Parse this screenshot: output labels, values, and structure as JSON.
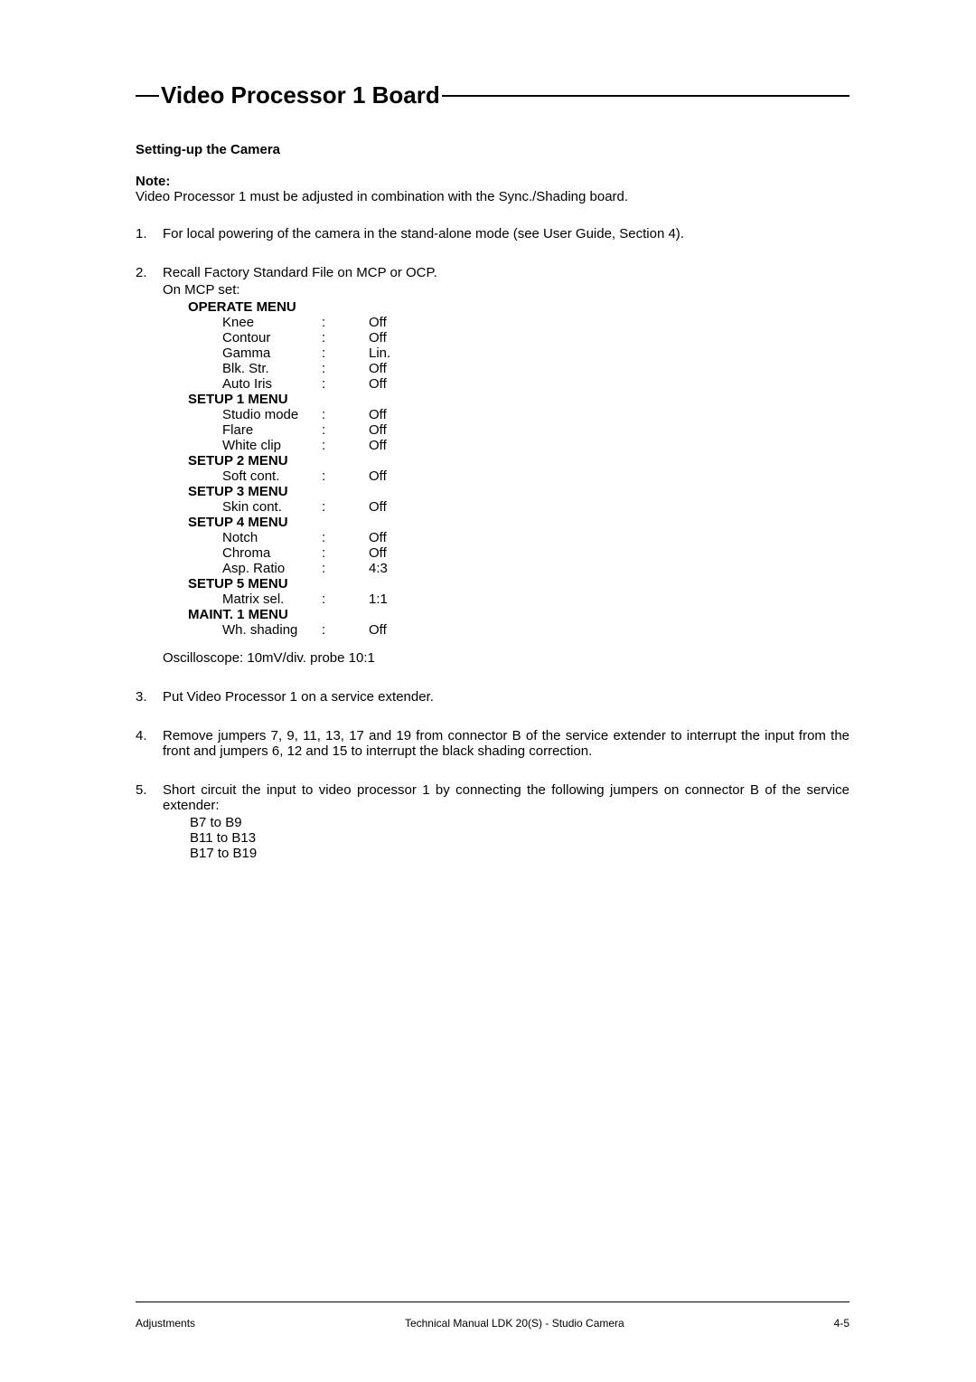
{
  "title": "Video Processor 1 Board",
  "subheading": "Setting-up the Camera",
  "note_label": "Note:",
  "note_text": "Video Processor 1 must be adjusted in combination with the Sync./Shading board.",
  "steps": {
    "s1": {
      "num": "1.",
      "text": "For local powering of the camera in the stand-alone mode (see User Guide, Section 4)."
    },
    "s2": {
      "num": "2.",
      "intro": "Recall Factory Standard File on MCP or OCP.",
      "subintro": "On MCP set:"
    },
    "s3": {
      "num": "3.",
      "text": "Put Video Processor 1 on a service extender."
    },
    "s4": {
      "num": "4.",
      "text": "Remove jumpers 7, 9, 11, 13, 17 and 19 from connector B of the service extender to interrupt the input from the front and jumpers 6, 12 and 15 to interrupt the black shading correction."
    },
    "s5": {
      "num": "5.",
      "text": "Short circuit the input to video processor 1 by connecting the following jumpers on connector B of the service extender:",
      "j1": "B7 to B9",
      "j2": "B11 to B13",
      "j3": "B17 to B19"
    }
  },
  "menus": {
    "m0": {
      "header": "OPERATE MENU"
    },
    "m0r0": {
      "label": "Knee",
      "colon": ":",
      "val": "Off"
    },
    "m0r1": {
      "label": "Contour",
      "colon": ":",
      "val": "Off"
    },
    "m0r2": {
      "label": "Gamma",
      "colon": ":",
      "val": "Lin."
    },
    "m0r3": {
      "label": "Blk. Str.",
      "colon": ":",
      "val": "Off"
    },
    "m0r4": {
      "label": "Auto Iris",
      "colon": ":",
      "val": "Off"
    },
    "m1": {
      "header": "SETUP 1 MENU"
    },
    "m1r0": {
      "label": "Studio mode",
      "colon": ":",
      "val": "Off"
    },
    "m1r1": {
      "label": "Flare",
      "colon": ":",
      "val": "Off"
    },
    "m1r2": {
      "label": "White clip",
      "colon": ":",
      "val": "Off"
    },
    "m2": {
      "header": "SETUP 2 MENU"
    },
    "m2r0": {
      "label": "Soft cont.",
      "colon": ":",
      "val": "Off"
    },
    "m3": {
      "header": "SETUP 3 MENU"
    },
    "m3r0": {
      "label": "Skin cont.",
      "colon": ":",
      "val": "Off"
    },
    "m4": {
      "header": "SETUP 4 MENU"
    },
    "m4r0": {
      "label": "Notch",
      "colon": ":",
      "val": "Off"
    },
    "m4r1": {
      "label": "Chroma",
      "colon": ":",
      "val": "Off"
    },
    "m4r2": {
      "label": "Asp. Ratio",
      "colon": ":",
      "val": "4:3"
    },
    "m5": {
      "header": "SETUP 5 MENU"
    },
    "m5r0": {
      "label": "Matrix sel.",
      "colon": ":",
      "val": "1:1"
    },
    "m6": {
      "header": "MAINT. 1 MENU"
    },
    "m6r0": {
      "label": "Wh. shading",
      "colon": ":",
      "val": "Off"
    }
  },
  "oscilloscope": "Oscilloscope: 10mV/div. probe 10:1",
  "footer": {
    "left": "Adjustments",
    "center": "Technical Manual LDK 20(S) - Studio Camera",
    "right": "4-5"
  }
}
